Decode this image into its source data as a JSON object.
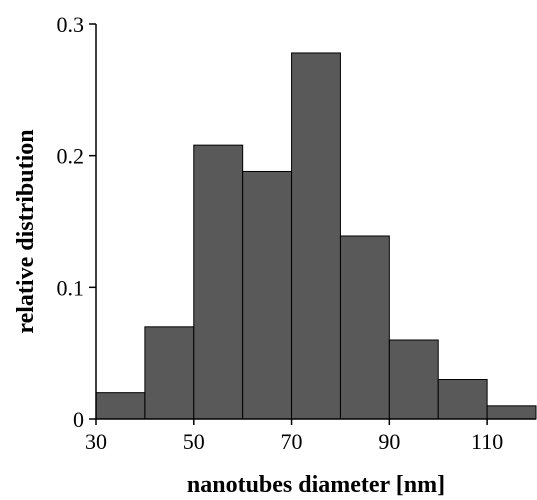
{
  "chart_data": {
    "type": "bar",
    "title": "",
    "xlabel": "nanotubes diameter [nm]",
    "ylabel": "relative distribution",
    "bin_width": 10,
    "bins": [
      {
        "start": 30,
        "end": 40,
        "value": 0.02
      },
      {
        "start": 40,
        "end": 50,
        "value": 0.07
      },
      {
        "start": 50,
        "end": 60,
        "value": 0.208
      },
      {
        "start": 60,
        "end": 70,
        "value": 0.188
      },
      {
        "start": 70,
        "end": 80,
        "value": 0.278
      },
      {
        "start": 80,
        "end": 90,
        "value": 0.139
      },
      {
        "start": 90,
        "end": 100,
        "value": 0.06
      },
      {
        "start": 100,
        "end": 110,
        "value": 0.03
      },
      {
        "start": 110,
        "end": 120,
        "value": 0.01
      }
    ],
    "xlim": [
      30,
      120
    ],
    "ylim": [
      0,
      0.3
    ],
    "x_ticks": [
      30,
      50,
      70,
      90,
      110
    ],
    "x_tick_labels": [
      "30",
      "50",
      "70",
      "90",
      "110"
    ],
    "y_ticks": [
      0,
      0.1,
      0.2,
      0.3
    ],
    "y_tick_labels": [
      "0",
      "0.1",
      "0.2",
      "0.3"
    ],
    "grid": false,
    "bar_color": "#595959"
  }
}
